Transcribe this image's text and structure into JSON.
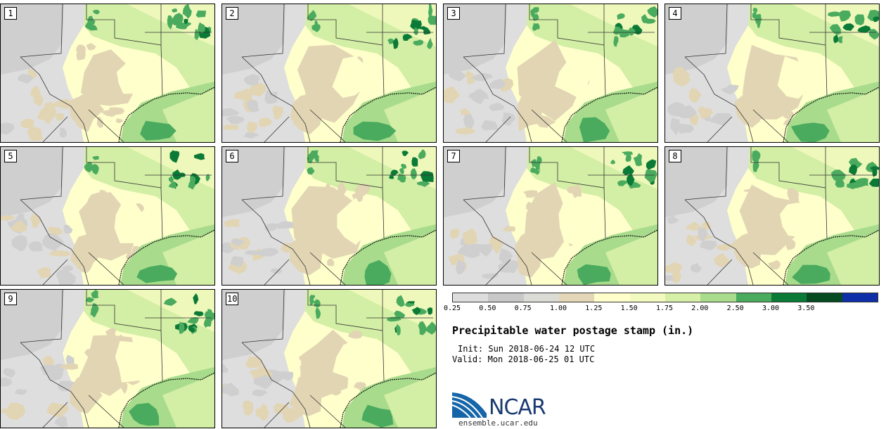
{
  "stamps": [
    {
      "label": "1"
    },
    {
      "label": "2"
    },
    {
      "label": "3"
    },
    {
      "label": "4"
    },
    {
      "label": "5"
    },
    {
      "label": "6"
    },
    {
      "label": "7"
    },
    {
      "label": "8"
    },
    {
      "label": "9"
    },
    {
      "label": "10"
    }
  ],
  "legend": {
    "title": "Precipitable water postage stamp (in.)",
    "ticks": [
      "0.25",
      "0.50",
      "0.75",
      "1.00",
      "1.25",
      "1.50",
      "1.75",
      "2.00",
      "2.50",
      "3.00",
      "3.50"
    ],
    "colors": [
      "#dddddd",
      "#c8c8c8",
      "#dcdcd6",
      "#e4d7b8",
      "#ffffcc",
      "#f2fabf",
      "#d7f0a8",
      "#a9dc8c",
      "#4aab5e",
      "#0a7a36",
      "#054a20",
      "#0e2fa8"
    ]
  },
  "run": {
    "init_label": "Init:",
    "init_value": "Sun 2018-06-24 12 UTC",
    "valid_label": "Valid:",
    "valid_value": "Mon 2018-06-25 01 UTC"
  },
  "branding": {
    "logo_text": "NCAR",
    "url": "ensemble.ucar.edu"
  },
  "map_colors": {
    "dry_gray": "#cfcfcf",
    "light_gray": "#dedede",
    "tan": "#e2d5b4",
    "cream": "#ffffcc",
    "pale_green": "#eff8bb",
    "light_green": "#d3eea5",
    "mid_green": "#a8dc8c",
    "green": "#4aab5e",
    "dark_green": "#0a7a36"
  }
}
